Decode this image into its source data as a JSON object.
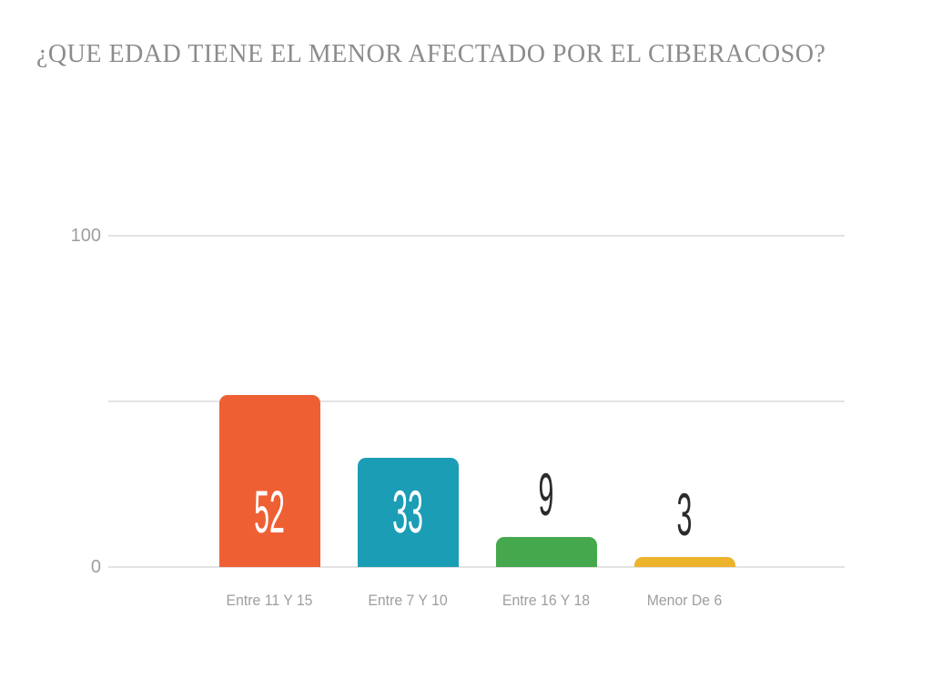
{
  "title": "¿QUE EDAD TIENE EL MENOR AFECTADO POR EL CIBERACOSO?",
  "chart_data": {
    "type": "bar",
    "title": "¿QUE EDAD TIENE EL MENOR AFECTADO POR EL CIBERACOSO?",
    "categories": [
      "Entre 11 Y 15",
      "Entre 7 Y 10",
      "Entre 16 Y 18",
      "Menor De 6"
    ],
    "values": [
      52,
      33,
      9,
      3
    ],
    "bar_colors": [
      "#EE6034",
      "#1B9DB5",
      "#45A84D",
      "#EDB32D"
    ],
    "xlabel": "",
    "ylabel": "",
    "ylim": [
      0,
      100
    ],
    "yticks": [
      0,
      100
    ],
    "ytick_labels": [
      "0",
      "100"
    ],
    "gridlines_at": [
      0,
      50,
      100
    ],
    "grid": true,
    "legend": false,
    "value_label_inside_color": "#FFFFFF",
    "value_label_outside_color": "#2B2B2B",
    "gridline_color": "#E3E3E3",
    "axis_text_color": "#9E9E9E",
    "title_color": "#8C8C8C",
    "background_color": "#FFFFFF"
  }
}
